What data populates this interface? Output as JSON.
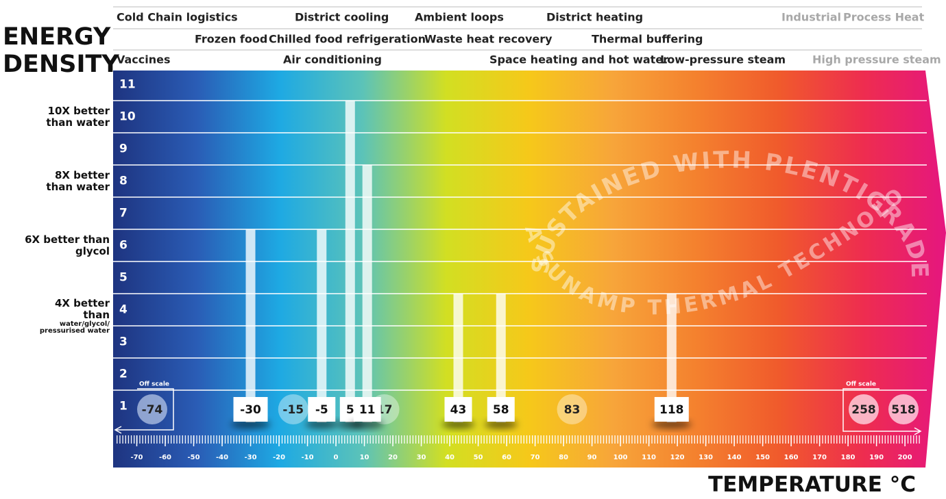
{
  "chart_data": {
    "type": "bar",
    "y_label": "ENERGY DENSITY",
    "x_label": "TEMPERATURE °C",
    "applications": [
      [
        {
          "label": "Cold Chain logistics",
          "color": "#222222"
        },
        {
          "label": "District cooling",
          "color": "#222222"
        },
        {
          "label": "Ambient loops",
          "color": "#222222"
        },
        {
          "label": "District heating",
          "color": "#222222"
        },
        {
          "label": "Industrial",
          "color": "#a8a8a8"
        },
        {
          "label": "Process Heat",
          "color": "#a8a8a8"
        }
      ],
      [
        {
          "label": "Frozen food",
          "color": "#222222"
        },
        {
          "label": "Chilled food refrigeration",
          "color": "#222222"
        },
        {
          "label": "Waste heat recovery",
          "color": "#222222"
        },
        {
          "label": "Thermal buffering",
          "color": "#222222"
        }
      ],
      [
        {
          "label": "Vaccines",
          "color": "#222222"
        },
        {
          "label": "Air conditioning",
          "color": "#222222"
        },
        {
          "label": "Space heating and hot water",
          "color": "#222222"
        },
        {
          "label": "Low-pressure steam",
          "color": "#222222"
        },
        {
          "label": "High pressure steam",
          "color": "#a8a8a8"
        }
      ]
    ],
    "y_annotations": [
      {
        "value": 10,
        "label": "10X better than water"
      },
      {
        "value": 8,
        "label": "8X better than water"
      },
      {
        "value": 6,
        "label": "6X better than glycol"
      },
      {
        "value": 4,
        "label": "4X better than",
        "sublabel": "water/glycol/ pressurised water"
      }
    ],
    "x": [
      -30,
      -5,
      5,
      11,
      43,
      58,
      118
    ],
    "values": [
      6,
      6,
      10,
      8,
      4,
      4,
      4
    ],
    "bar_color": "rgba(255,255,255,0.78)",
    "points": {
      "x": [
        -15,
        17,
        83
      ],
      "color": "rgba(255,255,255,0.38)"
    },
    "off_scale": {
      "label": "Off scale",
      "low": [
        -74
      ],
      "high": [
        258,
        518
      ],
      "low_color": "rgba(190,205,235,0.7)",
      "high_color": "rgba(255,225,235,0.75)"
    },
    "watermark": [
      "SUSTAINED WITH PLENTIGRADE",
      "A SUNAMP THERMAL TECHNOLOGY"
    ],
    "background_colors": [
      "#1e3480",
      "#2a5cb5",
      "#1ea9e3",
      "#5cc3b8",
      "#d2df22",
      "#f6c81a",
      "#f7a53a",
      "#f4812e",
      "#f05a2c",
      "#ee2d4f",
      "#e5167f"
    ],
    "xlim": [
      -80,
      206
    ],
    "xticks": [
      -70,
      -60,
      -50,
      -40,
      -30,
      -20,
      -10,
      0,
      10,
      20,
      30,
      40,
      50,
      60,
      70,
      80,
      90,
      100,
      110,
      120,
      130,
      140,
      150,
      160,
      170,
      180,
      190,
      200
    ],
    "ylim": [
      0,
      11
    ],
    "yticks": [
      1,
      2,
      3,
      4,
      5,
      6,
      7,
      8,
      9,
      10,
      11
    ],
    "grid": true
  }
}
